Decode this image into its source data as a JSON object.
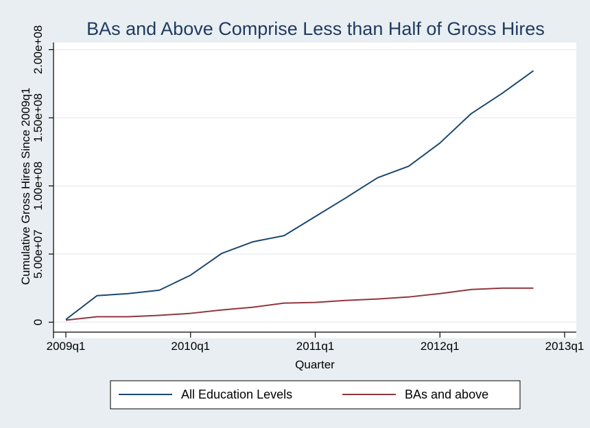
{
  "chart_data": {
    "type": "line",
    "title": "BAs and Above Comprise Less than Half of Gross Hires",
    "xlabel": "Quarter",
    "ylabel": "Cumulative Gross Hires Since 2009q1",
    "x": [
      0,
      1,
      2,
      3,
      4,
      5,
      6,
      7,
      8,
      9,
      10,
      11,
      12,
      13,
      14,
      15
    ],
    "xlim": [
      0,
      16
    ],
    "x_ticks": [
      {
        "value": 0,
        "label": "2009q1"
      },
      {
        "value": 4,
        "label": "2010q1"
      },
      {
        "value": 8,
        "label": "2011q1"
      },
      {
        "value": 12,
        "label": "2012q1"
      },
      {
        "value": 16,
        "label": "2013q1"
      }
    ],
    "ylim": [
      -7000000,
      200000000
    ],
    "y_ticks": [
      {
        "value": 0,
        "label": "0"
      },
      {
        "value": 50000000,
        "label": "5.00e+07"
      },
      {
        "value": 100000000,
        "label": "1.00e+08"
      },
      {
        "value": 150000000,
        "label": "1.50e+08"
      },
      {
        "value": 200000000,
        "label": "2.00e+08"
      }
    ],
    "grid": true,
    "legend_position": "bottom",
    "series": [
      {
        "name": "All Education Levels",
        "color": "#1a476f",
        "values": [
          2000000,
          19500000,
          21000000,
          23500000,
          34500000,
          50500000,
          59000000,
          63500000,
          77500000,
          91500000,
          106000000,
          114500000,
          131500000,
          153000000,
          168000000,
          184500000
        ]
      },
      {
        "name": "BAs and above",
        "color": "#90353b",
        "values": [
          1500000,
          4000000,
          4000000,
          5000000,
          6500000,
          9000000,
          11000000,
          14000000,
          14500000,
          16000000,
          17000000,
          18500000,
          21000000,
          24000000,
          25000000,
          25000000
        ]
      }
    ]
  }
}
